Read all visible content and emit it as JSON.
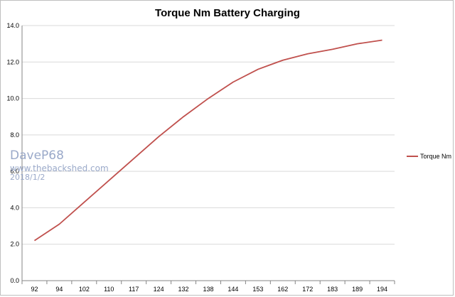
{
  "chart_data": {
    "type": "line",
    "title": "Torque Nm Battery Charging",
    "xlabel": "",
    "ylabel": "",
    "categories": [
      "92",
      "94",
      "102",
      "110",
      "117",
      "124",
      "132",
      "138",
      "144",
      "153",
      "162",
      "172",
      "183",
      "189",
      "194"
    ],
    "series": [
      {
        "name": "Torque Nm",
        "values": [
          2.2,
          3.1,
          4.3,
          5.5,
          6.7,
          7.9,
          9.0,
          10.0,
          10.9,
          11.6,
          12.1,
          12.45,
          12.7,
          13.0,
          13.2
        ]
      }
    ],
    "yticks": [
      "0.0",
      "2.0",
      "4.0",
      "6.0",
      "8.0",
      "10.0",
      "12.0",
      "14.0"
    ],
    "ylim": [
      0,
      14
    ],
    "grid": true,
    "legend_position": "right",
    "colors": {
      "series": "#c0504d",
      "grid": "#d9d9d9",
      "axis": "#868686"
    }
  },
  "watermark": {
    "name": "DaveP68",
    "site": "www.thebackshed.com",
    "date": "2018/1/2"
  }
}
